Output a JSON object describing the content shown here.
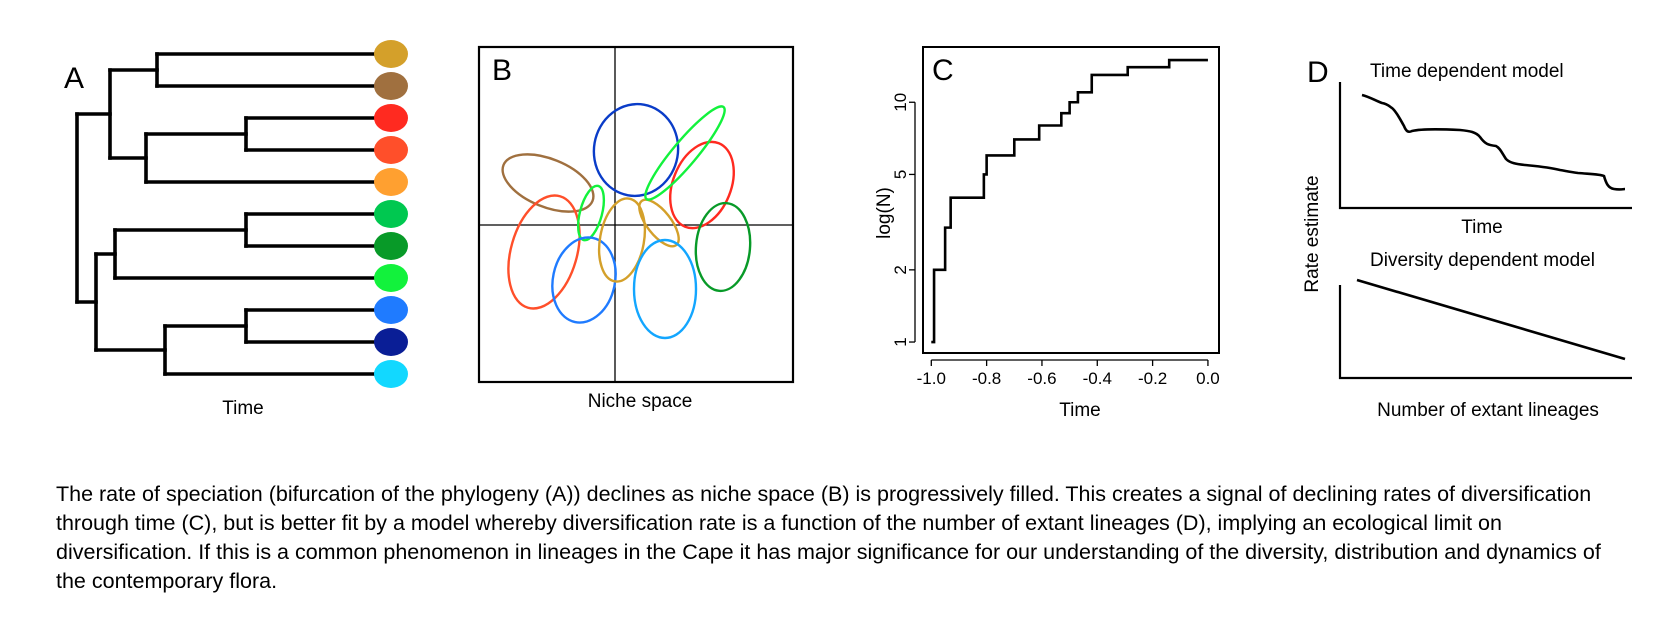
{
  "panel_a": {
    "letter": "A",
    "xlabel": "Time",
    "tip_colors": [
      "#D4A02A",
      "#A0703F",
      "#FF2A20",
      "#FF4F2A",
      "#FFA030",
      "#00C850",
      "#089A28",
      "#12F23C",
      "#1F7BFF",
      "#0A1E96",
      "#12D8FF"
    ]
  },
  "panel_b": {
    "letter": "B",
    "xlabel": "Niche space",
    "niche_colors": [
      "#A0703F",
      "#FF4F2A",
      "#12F23C",
      "#1F7BFF",
      "#D4A02A",
      "#13A6FF",
      "#0A3CC8",
      "#FF2A20",
      "#12F23C",
      "#089A28",
      "#12D8FF"
    ]
  },
  "panel_c": {
    "letter": "C",
    "xlabel": "Time",
    "ylabel": "log(N)",
    "chart_data": {
      "type": "line",
      "x_ticks": [
        -1.0,
        -0.8,
        -0.6,
        -0.4,
        -0.2,
        0.0
      ],
      "x_tick_labels": [
        "-1.0",
        "-0.8",
        "-0.6",
        "-0.4",
        "-0.2",
        "0.0"
      ],
      "y_scale": "log",
      "y_ticks": [
        1,
        2,
        5,
        10
      ],
      "y_tick_labels": [
        "1",
        "2",
        "5",
        "10"
      ],
      "xlim": [
        -1.03,
        0.04
      ],
      "ylim": [
        0.9,
        17
      ],
      "steps": [
        [
          -1.0,
          1
        ],
        [
          -0.99,
          2
        ],
        [
          -0.95,
          3
        ],
        [
          -0.93,
          4
        ],
        [
          -0.81,
          5
        ],
        [
          -0.8,
          6
        ],
        [
          -0.7,
          7
        ],
        [
          -0.61,
          8
        ],
        [
          -0.53,
          9
        ],
        [
          -0.5,
          10
        ],
        [
          -0.47,
          11
        ],
        [
          -0.42,
          13
        ],
        [
          -0.29,
          14
        ],
        [
          -0.14,
          15
        ],
        [
          0.0,
          15
        ]
      ]
    }
  },
  "panel_d": {
    "letter": "D",
    "top_title": "Time dependent model",
    "top_xlabel": "Time",
    "ylabel": "Rate estimate",
    "bottom_title": "Diversity dependent model",
    "bottom_xlabel": "Number of extant lineages"
  },
  "caption": "The rate of speciation (bifurcation of the phylogeny (A)) declines as niche space (B) is progressively filled. This creates a signal of declining rates of diversification through time (C), but is better fit by a model whereby diversification rate is a function of the number of extant lineages (D), implying an ecological limit on diversification. If this is a common phenomenon in lineages in the Cape it has major significance for our understanding of the diversity, distribution and dynamics of the contemporary flora."
}
